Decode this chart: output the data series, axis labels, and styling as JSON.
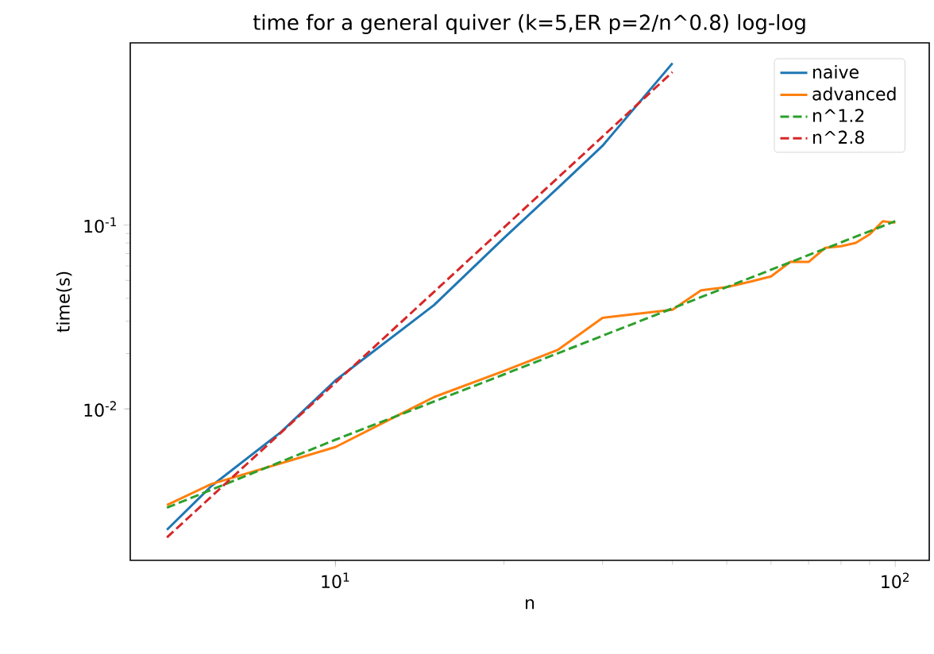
{
  "chart_data": {
    "type": "line",
    "title": "time for a general quiver (k=5,ER p=2/n^0.8) log-log",
    "xlabel": "n",
    "ylabel": "time(s)",
    "log": "xy",
    "legend": "top right",
    "xlim": [
      4.3,
      115
    ],
    "ylim": [
      0.0015,
      0.98
    ],
    "xticks": [
      {
        "value": 10,
        "label": "10$^{1}$"
      },
      {
        "value": 100,
        "label": "10$^{2}$"
      }
    ],
    "yticks": [
      {
        "value": 0.01,
        "label": "10$^{-2}$"
      },
      {
        "value": 0.1,
        "label": "10$^{-1}$"
      }
    ],
    "series": [
      {
        "name": "naive",
        "color": "#1f77b4",
        "line_style": "solid",
        "x": [
          5,
          6,
          8,
          10,
          15,
          20,
          25,
          30,
          40
        ],
        "values": [
          0.0022,
          0.0038,
          0.0075,
          0.0143,
          0.0367,
          0.085,
          0.16,
          0.27,
          0.76
        ]
      },
      {
        "name": "advanced",
        "color": "#ff7f0e",
        "line_style": "solid",
        "x": [
          5,
          6,
          10,
          15,
          20,
          25,
          30,
          40,
          45,
          50,
          55,
          60,
          65,
          70,
          75,
          80,
          85,
          90,
          95,
          100
        ],
        "values": [
          0.003,
          0.0039,
          0.0062,
          0.0116,
          0.0161,
          0.021,
          0.0313,
          0.0346,
          0.0442,
          0.046,
          0.0492,
          0.0526,
          0.0632,
          0.063,
          0.0752,
          0.0767,
          0.08,
          0.089,
          0.105,
          0.103
        ]
      },
      {
        "name": "n^1.2",
        "color": "#2ca02c",
        "line_style": "dashed",
        "x": [
          5,
          10,
          20,
          50,
          100
        ],
        "values": [
          0.0029,
          0.0068,
          0.0154,
          0.046,
          0.105
        ]
      },
      {
        "name": "n^2.8",
        "color": "#d62728",
        "line_style": "dashed",
        "x": [
          5,
          10,
          20,
          40
        ],
        "values": [
          0.002,
          0.0139,
          0.097,
          0.68
        ]
      }
    ]
  }
}
